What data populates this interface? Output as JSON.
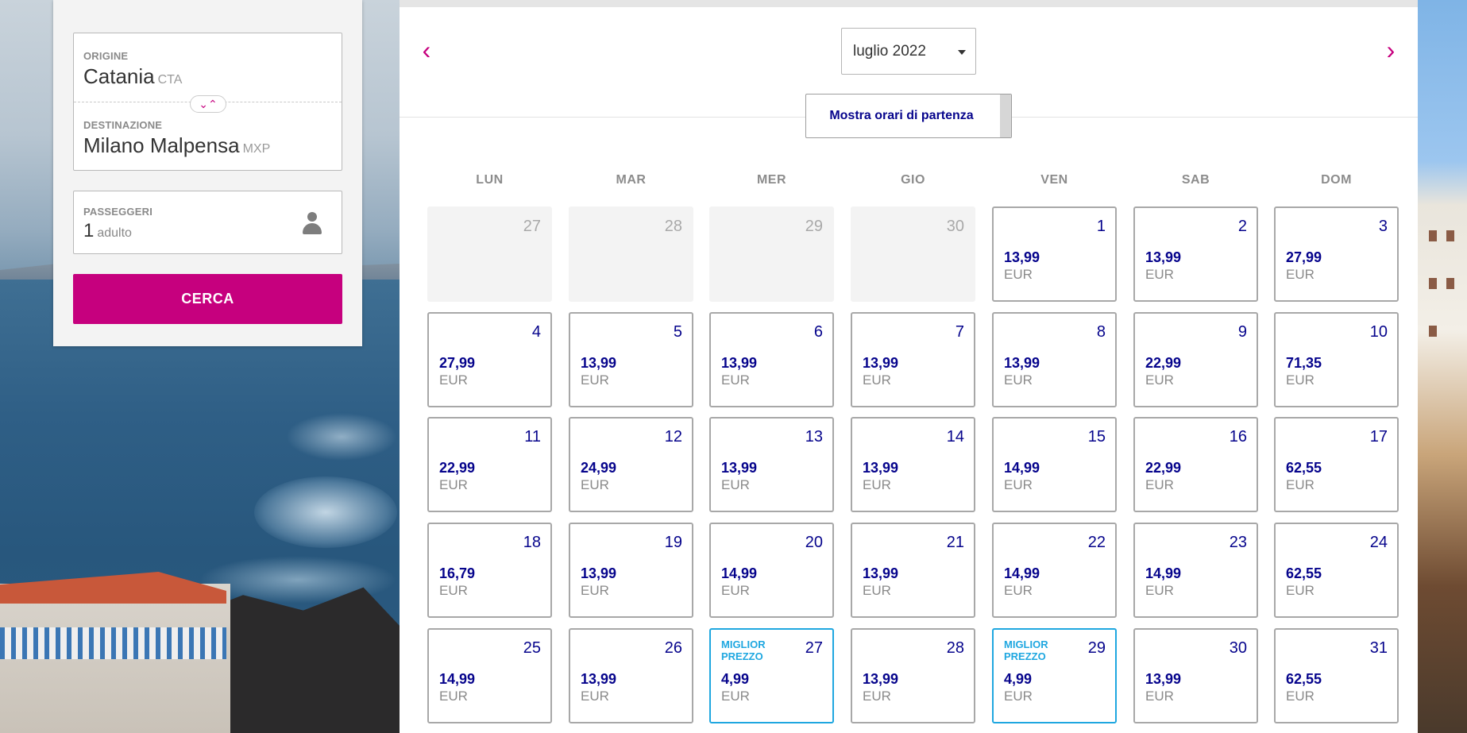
{
  "search": {
    "origin_label": "ORIGINE",
    "origin_city": "Catania",
    "origin_code": "CTA",
    "destination_label": "DESTINAZIONE",
    "destination_city": "Milano Malpensa",
    "destination_code": "MXP",
    "passengers_label": "PASSEGGERI",
    "passengers_count": "1",
    "passengers_unit": "adulto",
    "search_button": "CERCA"
  },
  "calendar": {
    "month_value": "luglio 2022",
    "times_button": "Mostra orari di partenza",
    "weekdays": [
      "LUN",
      "MAR",
      "MER",
      "GIO",
      "VEN",
      "SAB",
      "DOM"
    ],
    "best_price_label": "MIGLIOR PREZZO",
    "days": [
      {
        "num": "27",
        "price": "",
        "currency": "",
        "off": true,
        "best": false
      },
      {
        "num": "28",
        "price": "",
        "currency": "",
        "off": true,
        "best": false
      },
      {
        "num": "29",
        "price": "",
        "currency": "",
        "off": true,
        "best": false
      },
      {
        "num": "30",
        "price": "",
        "currency": "",
        "off": true,
        "best": false
      },
      {
        "num": "1",
        "price": "13,99",
        "currency": "EUR",
        "off": false,
        "best": false
      },
      {
        "num": "2",
        "price": "13,99",
        "currency": "EUR",
        "off": false,
        "best": false
      },
      {
        "num": "3",
        "price": "27,99",
        "currency": "EUR",
        "off": false,
        "best": false
      },
      {
        "num": "4",
        "price": "27,99",
        "currency": "EUR",
        "off": false,
        "best": false
      },
      {
        "num": "5",
        "price": "13,99",
        "currency": "EUR",
        "off": false,
        "best": false
      },
      {
        "num": "6",
        "price": "13,99",
        "currency": "EUR",
        "off": false,
        "best": false
      },
      {
        "num": "7",
        "price": "13,99",
        "currency": "EUR",
        "off": false,
        "best": false
      },
      {
        "num": "8",
        "price": "13,99",
        "currency": "EUR",
        "off": false,
        "best": false
      },
      {
        "num": "9",
        "price": "22,99",
        "currency": "EUR",
        "off": false,
        "best": false
      },
      {
        "num": "10",
        "price": "71,35",
        "currency": "EUR",
        "off": false,
        "best": false
      },
      {
        "num": "11",
        "price": "22,99",
        "currency": "EUR",
        "off": false,
        "best": false
      },
      {
        "num": "12",
        "price": "24,99",
        "currency": "EUR",
        "off": false,
        "best": false
      },
      {
        "num": "13",
        "price": "13,99",
        "currency": "EUR",
        "off": false,
        "best": false
      },
      {
        "num": "14",
        "price": "13,99",
        "currency": "EUR",
        "off": false,
        "best": false
      },
      {
        "num": "15",
        "price": "14,99",
        "currency": "EUR",
        "off": false,
        "best": false
      },
      {
        "num": "16",
        "price": "22,99",
        "currency": "EUR",
        "off": false,
        "best": false
      },
      {
        "num": "17",
        "price": "62,55",
        "currency": "EUR",
        "off": false,
        "best": false
      },
      {
        "num": "18",
        "price": "16,79",
        "currency": "EUR",
        "off": false,
        "best": false
      },
      {
        "num": "19",
        "price": "13,99",
        "currency": "EUR",
        "off": false,
        "best": false
      },
      {
        "num": "20",
        "price": "14,99",
        "currency": "EUR",
        "off": false,
        "best": false
      },
      {
        "num": "21",
        "price": "13,99",
        "currency": "EUR",
        "off": false,
        "best": false
      },
      {
        "num": "22",
        "price": "14,99",
        "currency": "EUR",
        "off": false,
        "best": false
      },
      {
        "num": "23",
        "price": "14,99",
        "currency": "EUR",
        "off": false,
        "best": false
      },
      {
        "num": "24",
        "price": "62,55",
        "currency": "EUR",
        "off": false,
        "best": false
      },
      {
        "num": "25",
        "price": "14,99",
        "currency": "EUR",
        "off": false,
        "best": false
      },
      {
        "num": "26",
        "price": "13,99",
        "currency": "EUR",
        "off": false,
        "best": false
      },
      {
        "num": "27",
        "price": "4,99",
        "currency": "EUR",
        "off": false,
        "best": true
      },
      {
        "num": "28",
        "price": "13,99",
        "currency": "EUR",
        "off": false,
        "best": false
      },
      {
        "num": "29",
        "price": "4,99",
        "currency": "EUR",
        "off": false,
        "best": true
      },
      {
        "num": "30",
        "price": "13,99",
        "currency": "EUR",
        "off": false,
        "best": false
      },
      {
        "num": "31",
        "price": "62,55",
        "currency": "EUR",
        "off": false,
        "best": false
      }
    ]
  },
  "icons": {
    "prev": "chevron-left-icon",
    "next": "chevron-right-icon",
    "swap": "swap-icon",
    "passenger": "person-icon",
    "dropdown": "caret-down-icon"
  },
  "colors": {
    "brand": "#c6007e",
    "price": "#06048c",
    "best_price": "#1fa7e0"
  }
}
